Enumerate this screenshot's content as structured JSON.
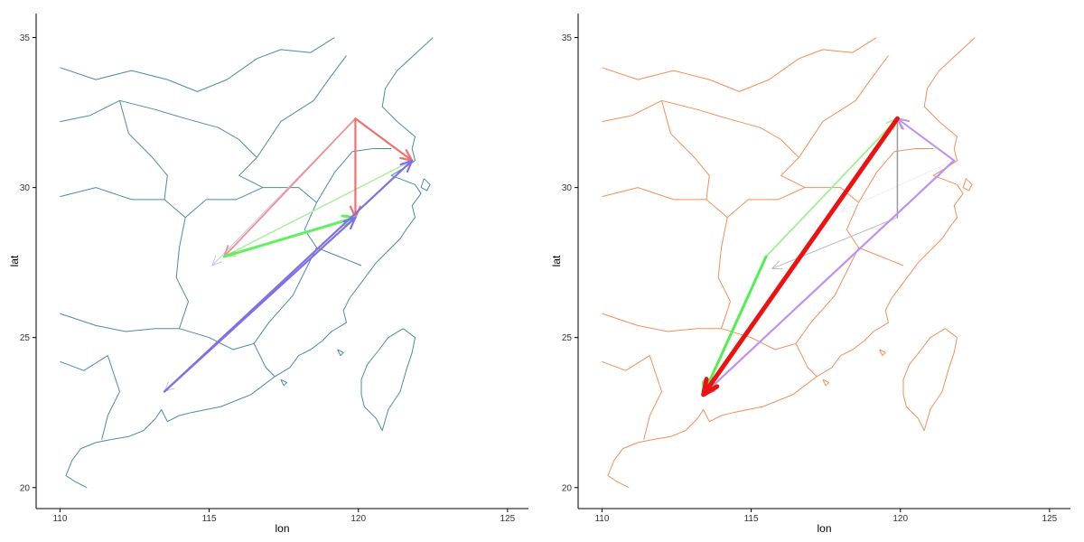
{
  "panels": [
    {
      "id": "left",
      "xlabel": "lon",
      "ylabel": "lat",
      "xticks": [
        110,
        115,
        120,
        125
      ],
      "yticks": [
        20,
        25,
        30,
        35
      ],
      "map_color": "#4a8ca8",
      "flows": [
        {
          "from": [
            121.8,
            30.9
          ],
          "to": [
            113.5,
            23.2
          ],
          "color": "#c8c4f0",
          "width": 1
        },
        {
          "from": [
            119.9,
            32.3
          ],
          "to": [
            115.1,
            27.4
          ],
          "color": "#c8c4f0",
          "width": 1
        },
        {
          "from": [
            121.8,
            30.9
          ],
          "to": [
            115.5,
            27.7
          ],
          "color": "#aaf0a0",
          "width": 1.5
        },
        {
          "from": [
            119.9,
            32.3
          ],
          "to": [
            115.5,
            27.7
          ],
          "color": "#f09090",
          "width": 1.8
        },
        {
          "from": [
            119.9,
            32.3
          ],
          "to": [
            121.8,
            30.9
          ],
          "color": "#f07070",
          "width": 2.2
        },
        {
          "from": [
            119.9,
            32.3
          ],
          "to": [
            119.9,
            29.0
          ],
          "color": "#f07070",
          "width": 2.2
        },
        {
          "from": [
            115.5,
            27.7
          ],
          "to": [
            119.9,
            29.0
          ],
          "color": "#60f060",
          "width": 3
        },
        {
          "from": [
            113.5,
            23.2
          ],
          "to": [
            121.8,
            30.9
          ],
          "color": "#8070e8",
          "width": 2.2
        },
        {
          "from": [
            113.5,
            23.2
          ],
          "to": [
            119.9,
            29.0
          ],
          "color": "#8070e8",
          "width": 2.2
        }
      ]
    },
    {
      "id": "right",
      "xlabel": "lon",
      "ylabel": "lat",
      "xticks": [
        110,
        115,
        120,
        125
      ],
      "yticks": [
        20,
        25,
        30,
        35
      ],
      "map_color": "#f0905a",
      "flows": [
        {
          "from": [
            119.9,
            29.0
          ],
          "to": [
            115.7,
            27.3
          ],
          "color": "#bbbbbb",
          "width": 1
        },
        {
          "from": [
            121.8,
            30.9
          ],
          "to": [
            118.0,
            29.2
          ],
          "color": "#eeeeee",
          "width": 1
        },
        {
          "from": [
            119.9,
            29.0
          ],
          "to": [
            119.9,
            32.3
          ],
          "color": "#999999",
          "width": 1.5
        },
        {
          "from": [
            115.5,
            27.7
          ],
          "to": [
            119.9,
            32.3
          ],
          "color": "#a0f090",
          "width": 1.8
        },
        {
          "from": [
            121.8,
            30.9
          ],
          "to": [
            119.9,
            32.3
          ],
          "color": "#c090f0",
          "width": 2
        },
        {
          "from": [
            121.8,
            30.9
          ],
          "to": [
            113.4,
            23.1
          ],
          "color": "#c090f0",
          "width": 2.2
        },
        {
          "from": [
            115.5,
            27.7
          ],
          "to": [
            113.4,
            23.1
          ],
          "color": "#50f050",
          "width": 3
        },
        {
          "from": [
            119.9,
            32.3
          ],
          "to": [
            113.4,
            23.1
          ],
          "color": "#ee1111",
          "width": 5
        }
      ]
    }
  ]
}
